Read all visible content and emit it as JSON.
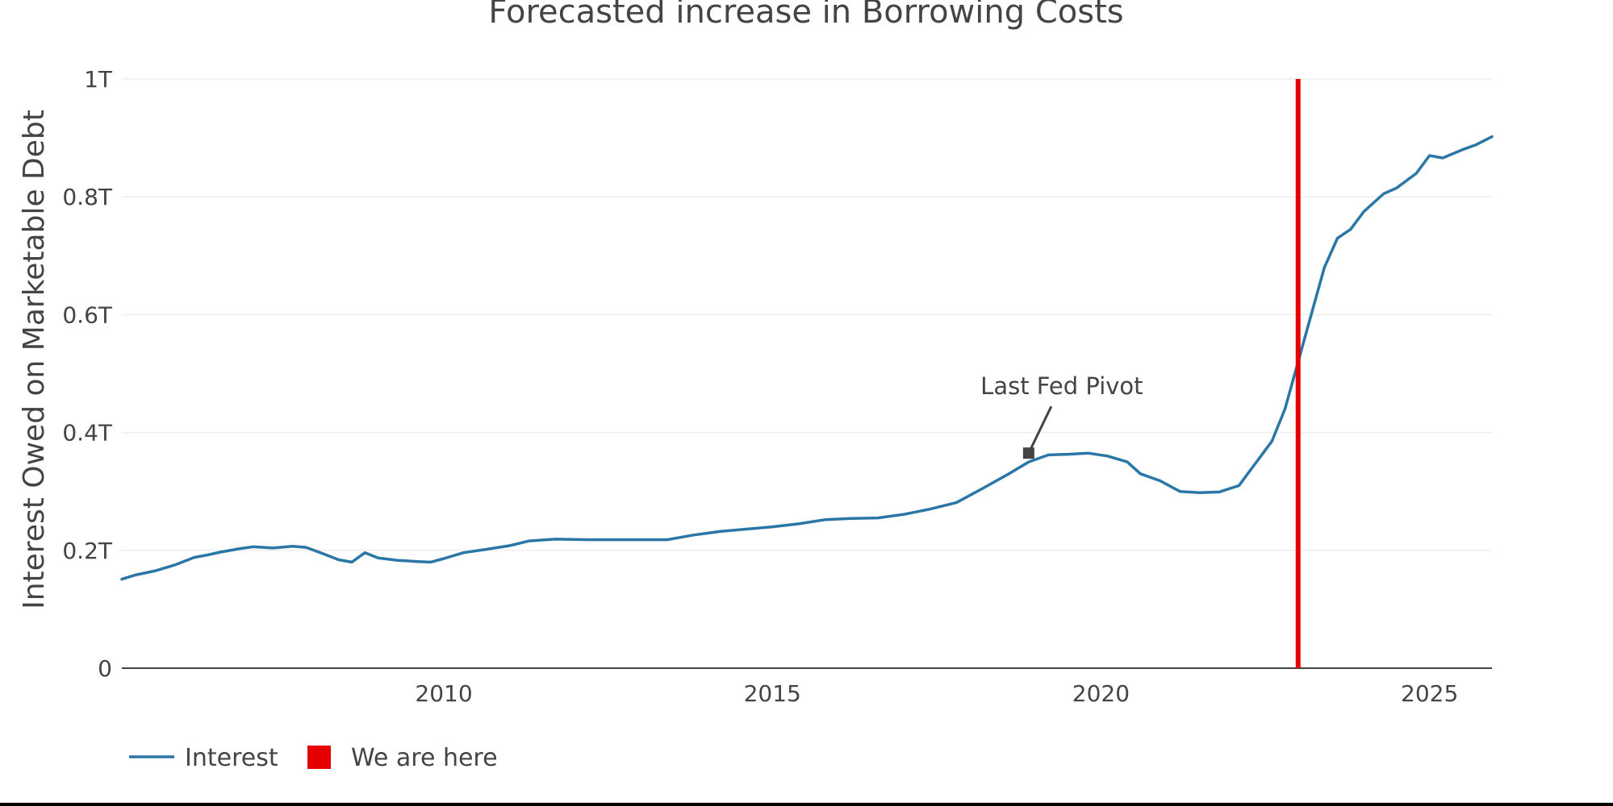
{
  "chart_data": {
    "type": "line",
    "title": "Forecasted increase in Borrowing Costs",
    "xlabel": "",
    "ylabel": "Interest Owed on Marketable Debt",
    "xlim": [
      2005.1,
      2025.95
    ],
    "ylim": [
      0,
      1000
    ],
    "x_ticks": [
      {
        "value": 2010,
        "label": "2010"
      },
      {
        "value": 2015,
        "label": "2015"
      },
      {
        "value": 2020,
        "label": "2020"
      },
      {
        "value": 2025,
        "label": "2025"
      }
    ],
    "y_ticks": [
      {
        "value": 0,
        "label": "0"
      },
      {
        "value": 200,
        "label": "0.2T"
      },
      {
        "value": 400,
        "label": "0.4T"
      },
      {
        "value": 600,
        "label": "0.6T"
      },
      {
        "value": 800,
        "label": "0.8T"
      },
      {
        "value": 1000,
        "label": "1T"
      }
    ],
    "y_unit": "billions USD",
    "series": [
      {
        "name": "Interest",
        "color": "#2a76a6",
        "x": [
          2005.1,
          2005.3,
          2005.6,
          2005.9,
          2006.2,
          2006.4,
          2006.6,
          2006.9,
          2007.1,
          2007.4,
          2007.7,
          2007.9,
          2008.1,
          2008.4,
          2008.6,
          2008.8,
          2009.0,
          2009.3,
          2009.6,
          2009.8,
          2010.0,
          2010.3,
          2010.6,
          2011.0,
          2011.3,
          2011.7,
          2012.2,
          2012.8,
          2013.4,
          2013.8,
          2014.2,
          2014.6,
          2015.0,
          2015.4,
          2015.8,
          2016.2,
          2016.6,
          2017.0,
          2017.4,
          2017.8,
          2018.2,
          2018.6,
          2018.9,
          2019.2,
          2019.5,
          2019.8,
          2020.1,
          2020.4,
          2020.6,
          2020.9,
          2021.2,
          2021.5,
          2021.8,
          2022.1,
          2022.3,
          2022.6,
          2022.8,
          2023.0,
          2023.2,
          2023.4,
          2023.6,
          2023.8,
          2024.0,
          2024.3,
          2024.5,
          2024.8,
          2025.0,
          2025.2,
          2025.5,
          2025.7,
          2025.95
        ],
        "values": [
          151,
          158,
          165,
          175,
          188,
          192,
          197,
          203,
          206,
          204,
          207,
          205,
          197,
          184,
          180,
          196,
          187,
          183,
          181,
          180,
          186,
          196,
          201,
          208,
          216,
          219,
          218,
          218,
          218,
          226,
          232,
          236,
          240,
          245,
          252,
          254,
          255,
          261,
          270,
          281,
          305,
          330,
          350,
          362,
          363,
          365,
          360,
          350,
          330,
          318,
          300,
          298,
          299,
          310,
          340,
          385,
          440,
          520,
          600,
          680,
          730,
          745,
          775,
          805,
          815,
          840,
          870,
          866,
          880,
          888,
          902
        ]
      }
    ],
    "reference_lines": [
      {
        "name": "We are here",
        "orientation": "vertical",
        "x": 2023.0,
        "color": "#e60000"
      }
    ],
    "annotations": [
      {
        "text": "Last Fed Pivot",
        "x": 2018.9,
        "y": 365,
        "color": "#444444"
      }
    ],
    "legend": {
      "placement": "bottom-left",
      "items": [
        {
          "label": "Interest",
          "symbol": "line",
          "color": "#2a76a6"
        },
        {
          "label": "We are here",
          "symbol": "square",
          "color": "#e60000"
        }
      ]
    },
    "grid": true
  }
}
